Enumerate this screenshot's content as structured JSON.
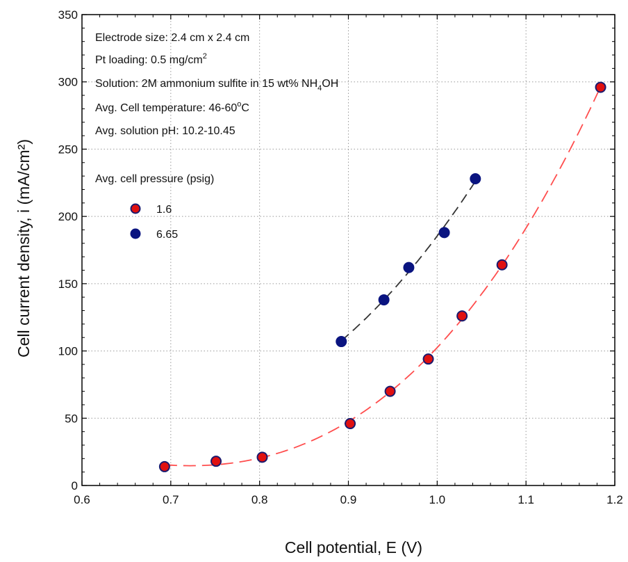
{
  "chart_data": {
    "type": "scatter",
    "xlabel": "Cell potential, E (V)",
    "ylabel": "Cell current density, i (mA/cm²)",
    "xlim": [
      0.6,
      1.2
    ],
    "ylim": [
      0,
      350
    ],
    "xticks": [
      "0.6",
      "0.7",
      "0.8",
      "0.9",
      "1.0",
      "1.1",
      "1.2"
    ],
    "yticks": [
      "0",
      "50",
      "100",
      "150",
      "200",
      "250",
      "300",
      "350"
    ],
    "grid": true,
    "annotations": {
      "line1": "Electrode size: 2.4 cm x 2.4 cm",
      "line2_main": "Pt loading: 0.5 mg/cm",
      "line2_sup": "2",
      "line3_main": "Solution: 2M ammonium sulfite in 15 wt% NH",
      "line3_sub": "4",
      "line3_end": "OH",
      "line4_main": "Avg. Cell temperature: 46-60",
      "line4_sup": "o",
      "line4_end": "C",
      "line5": "Avg. solution pH: 10.2-10.45"
    },
    "legend_title": "Avg. cell pressure (psig)",
    "legend_position": "top-left",
    "series": [
      {
        "name": "1.6",
        "marker_color": "#e01010",
        "edge_color": "#1a1a6e",
        "line_color": "#ff4d4d",
        "x": [
          0.693,
          0.751,
          0.803,
          0.902,
          0.947,
          0.99,
          1.028,
          1.073,
          1.184
        ],
        "y": [
          14,
          18,
          21,
          46,
          70,
          94,
          126,
          164,
          296
        ]
      },
      {
        "name": "6.65",
        "marker_color": "#0a1480",
        "edge_color": "#0a1480",
        "line_color": "#333333",
        "x": [
          0.892,
          0.94,
          0.968,
          1.008,
          1.043
        ],
        "y": [
          107,
          138,
          162,
          188,
          228
        ]
      }
    ]
  }
}
